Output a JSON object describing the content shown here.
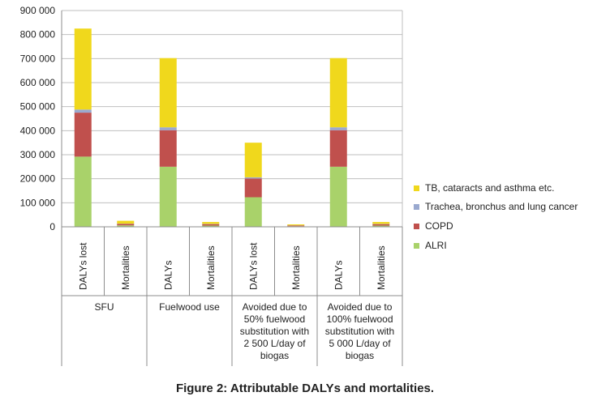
{
  "caption": "Figure 2: Attributable DALYs and mortalities.",
  "chart_data": {
    "type": "bar",
    "stacked": true,
    "ylim": [
      0,
      900000
    ],
    "yticks": [
      0,
      100000,
      200000,
      300000,
      400000,
      500000,
      600000,
      700000,
      800000,
      900000
    ],
    "ytick_labels": [
      "0",
      "100 000",
      "200 000",
      "300 000",
      "400 000",
      "500 000",
      "600 000",
      "700 000",
      "800 000",
      "900 000"
    ],
    "grid": true,
    "legend_position": "right",
    "categories": [
      "DALYs lost",
      "Mortalities",
      "DALYs",
      "Mortalities",
      "DALYs lost",
      "Mortalities",
      "DALYs",
      "Mortalities"
    ],
    "groups": [
      {
        "label": "SFU",
        "categories": [
          "DALYs lost",
          "Mortalities"
        ]
      },
      {
        "label": "Fuelwood use",
        "categories": [
          "DALYs",
          "Mortalities"
        ]
      },
      {
        "label": "Avoided due to 50% fuelwood substitution with 2 500 L/day of biogas",
        "categories": [
          "DALYs lost",
          "Mortalities"
        ]
      },
      {
        "label": "Avoided due to 100% fuelwood substitution with 5 000 L/day of biogas",
        "categories": [
          "DALYs",
          "Mortalities"
        ]
      }
    ],
    "series": [
      {
        "name": "ALRI",
        "color": "#a9d26a",
        "values": [
          292000,
          6000,
          250000,
          5000,
          123000,
          2500,
          250000,
          5000
        ]
      },
      {
        "name": "COPD",
        "color": "#c0504d",
        "values": [
          183000,
          6000,
          152000,
          6000,
          78000,
          3000,
          152000,
          6000
        ]
      },
      {
        "name": "Trachea, bronchus and lung cancer",
        "color": "#9aa9cf",
        "values": [
          13000,
          1000,
          12000,
          1000,
          5000,
          500,
          12000,
          1000
        ]
      },
      {
        "name": "TB, cataracts and asthma etc.",
        "color": "#f0d81c",
        "values": [
          337000,
          12000,
          288000,
          8000,
          144000,
          4000,
          288000,
          8000
        ]
      }
    ]
  }
}
